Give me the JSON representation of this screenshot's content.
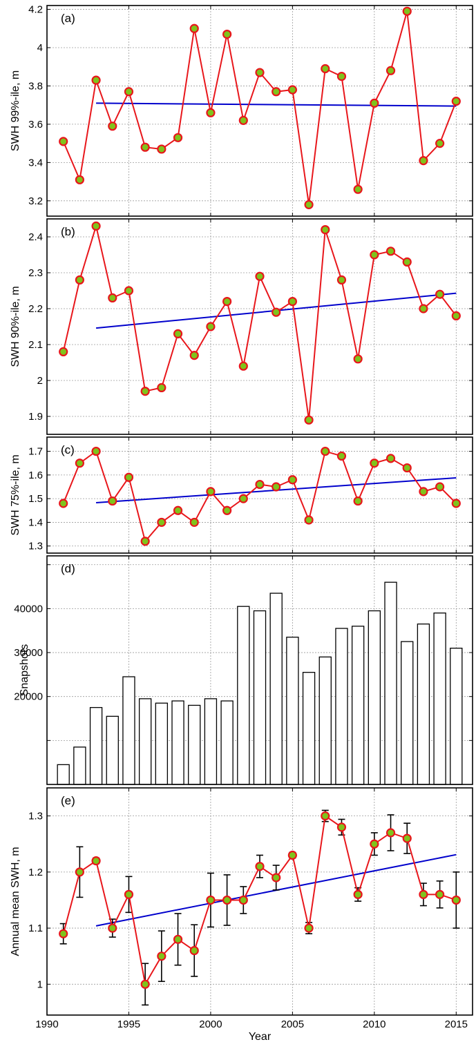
{
  "chart_data": [
    {
      "type": "line",
      "panel_label": "(a)",
      "ylabel": "SWH 99%-ile, m",
      "ylim": [
        3.12,
        4.22
      ],
      "yticks": [
        3.2,
        3.4,
        3.6,
        3.8,
        4.0,
        4.2
      ],
      "ytick_labels": [
        "3.2",
        "3.4",
        "3.6",
        "3.8",
        "4",
        "4.2"
      ],
      "grid": true,
      "x": [
        1991,
        1992,
        1993,
        1994,
        1995,
        1996,
        1997,
        1998,
        1999,
        2000,
        2001,
        2002,
        2003,
        2004,
        2005,
        2006,
        2007,
        2008,
        2009,
        2010,
        2011,
        2012,
        2013,
        2014,
        2015
      ],
      "series": [
        {
          "values": [
            3.51,
            3.31,
            3.83,
            3.59,
            3.77,
            3.48,
            3.47,
            3.53,
            4.1,
            3.66,
            4.07,
            3.62,
            3.87,
            3.77,
            3.78,
            3.18,
            3.89,
            3.85,
            3.26,
            3.71,
            3.88,
            4.19,
            3.41,
            3.5,
            3.72
          ],
          "color": "#e8161b",
          "marker_color": "#7fc31c"
        }
      ],
      "trend": {
        "x": [
          1993,
          2015
        ],
        "y": [
          3.71,
          3.695
        ],
        "color": "#0000cc"
      }
    },
    {
      "type": "line",
      "panel_label": "(b)",
      "ylabel": "SWH 90%-ile, m",
      "ylim": [
        1.85,
        2.45
      ],
      "yticks": [
        1.9,
        2.0,
        2.1,
        2.2,
        2.3,
        2.4
      ],
      "ytick_labels": [
        "1.9",
        "2",
        "2.1",
        "2.2",
        "2.3",
        "2.4"
      ],
      "grid": true,
      "x": [
        1991,
        1992,
        1993,
        1994,
        1995,
        1996,
        1997,
        1998,
        1999,
        2000,
        2001,
        2002,
        2003,
        2004,
        2005,
        2006,
        2007,
        2008,
        2009,
        2010,
        2011,
        2012,
        2013,
        2014,
        2015
      ],
      "series": [
        {
          "values": [
            2.08,
            2.28,
            2.43,
            2.23,
            2.25,
            1.97,
            1.98,
            2.13,
            2.07,
            2.15,
            2.22,
            2.04,
            2.29,
            2.19,
            2.22,
            1.89,
            2.42,
            2.28,
            2.06,
            2.35,
            2.36,
            2.33,
            2.2,
            2.24,
            2.18
          ],
          "color": "#e8161b",
          "marker_color": "#7fc31c"
        }
      ],
      "trend": {
        "x": [
          1993,
          2015
        ],
        "y": [
          2.146,
          2.243
        ],
        "color": "#0000cc"
      }
    },
    {
      "type": "line",
      "panel_label": "(c)",
      "ylabel": "SWH 75%-ile, m",
      "ylim": [
        1.27,
        1.76
      ],
      "yticks": [
        1.3,
        1.4,
        1.5,
        1.6,
        1.7
      ],
      "ytick_labels": [
        "1.3",
        "1.4",
        "1.5",
        "1.6",
        "1.7"
      ],
      "grid": true,
      "x": [
        1991,
        1992,
        1993,
        1994,
        1995,
        1996,
        1997,
        1998,
        1999,
        2000,
        2001,
        2002,
        2003,
        2004,
        2005,
        2006,
        2007,
        2008,
        2009,
        2010,
        2011,
        2012,
        2013,
        2014,
        2015
      ],
      "series": [
        {
          "values": [
            1.48,
            1.65,
            1.7,
            1.49,
            1.59,
            1.32,
            1.4,
            1.45,
            1.4,
            1.53,
            1.45,
            1.5,
            1.56,
            1.55,
            1.58,
            1.41,
            1.7,
            1.68,
            1.49,
            1.65,
            1.67,
            1.63,
            1.53,
            1.55,
            1.48
          ],
          "color": "#e8161b",
          "marker_color": "#7fc31c"
        }
      ],
      "trend": {
        "x": [
          1993,
          2015
        ],
        "y": [
          1.483,
          1.588
        ],
        "color": "#0000cc"
      }
    },
    {
      "type": "bar",
      "panel_label": "(d)",
      "ylabel": "Snapshots",
      "ylim": [
        0,
        52000
      ],
      "yticks": [
        10000,
        20000,
        30000,
        40000,
        50000
      ],
      "ytick_labels": [
        "",
        "20000",
        "30000",
        "40000",
        ""
      ],
      "grid": true,
      "categories": [
        1991,
        1992,
        1993,
        1994,
        1995,
        1996,
        1997,
        1998,
        1999,
        2000,
        2001,
        2002,
        2003,
        2004,
        2005,
        2006,
        2007,
        2008,
        2009,
        2010,
        2011,
        2012,
        2013,
        2014,
        2015
      ],
      "values": [
        4500,
        8500,
        17500,
        15500,
        24500,
        19500,
        18500,
        19000,
        18000,
        19500,
        19000,
        40500,
        39500,
        43500,
        33500,
        25500,
        29000,
        35500,
        36000,
        39500,
        46000,
        32500,
        36500,
        39000,
        31000
      ],
      "bar_fill": "#ffffff",
      "bar_edge": "#000000"
    },
    {
      "type": "line",
      "panel_label": "(e)",
      "ylabel": "Annual mean SWH, m",
      "xlabel": "Year",
      "ylim": [
        0.945,
        1.35
      ],
      "yticks": [
        1.0,
        1.1,
        1.2,
        1.3
      ],
      "ytick_labels": [
        "1",
        "1.1",
        "1.2",
        "1.3"
      ],
      "xlim": [
        1990,
        2016
      ],
      "xticks": [
        1990,
        1995,
        2000,
        2005,
        2010,
        2015
      ],
      "xtick_labels": [
        "1990",
        "1995",
        "2000",
        "2005",
        "2010",
        "2015"
      ],
      "grid": true,
      "x": [
        1991,
        1992,
        1993,
        1994,
        1995,
        1996,
        1997,
        1998,
        1999,
        2000,
        2001,
        2002,
        2003,
        2004,
        2005,
        2006,
        2007,
        2008,
        2009,
        2010,
        2011,
        2012,
        2013,
        2014,
        2015
      ],
      "series": [
        {
          "values": [
            1.09,
            1.2,
            1.22,
            1.1,
            1.16,
            1.0,
            1.05,
            1.08,
            1.06,
            1.15,
            1.15,
            1.15,
            1.21,
            1.19,
            1.23,
            1.1,
            1.3,
            1.28,
            1.16,
            1.25,
            1.27,
            1.26,
            1.16,
            1.16,
            1.15
          ],
          "error": [
            0.018,
            0.045,
            0.005,
            0.016,
            0.032,
            0.037,
            0.045,
            0.046,
            0.046,
            0.048,
            0.045,
            0.024,
            0.02,
            0.022,
            0.005,
            0.01,
            0.01,
            0.014,
            0.012,
            0.02,
            0.032,
            0.027,
            0.02,
            0.024,
            0.05
          ],
          "color": "#e8161b",
          "marker_color": "#7fc31c"
        }
      ],
      "trend": {
        "x": [
          1993,
          2015
        ],
        "y": [
          1.104,
          1.231
        ],
        "color": "#0000cc"
      }
    }
  ]
}
